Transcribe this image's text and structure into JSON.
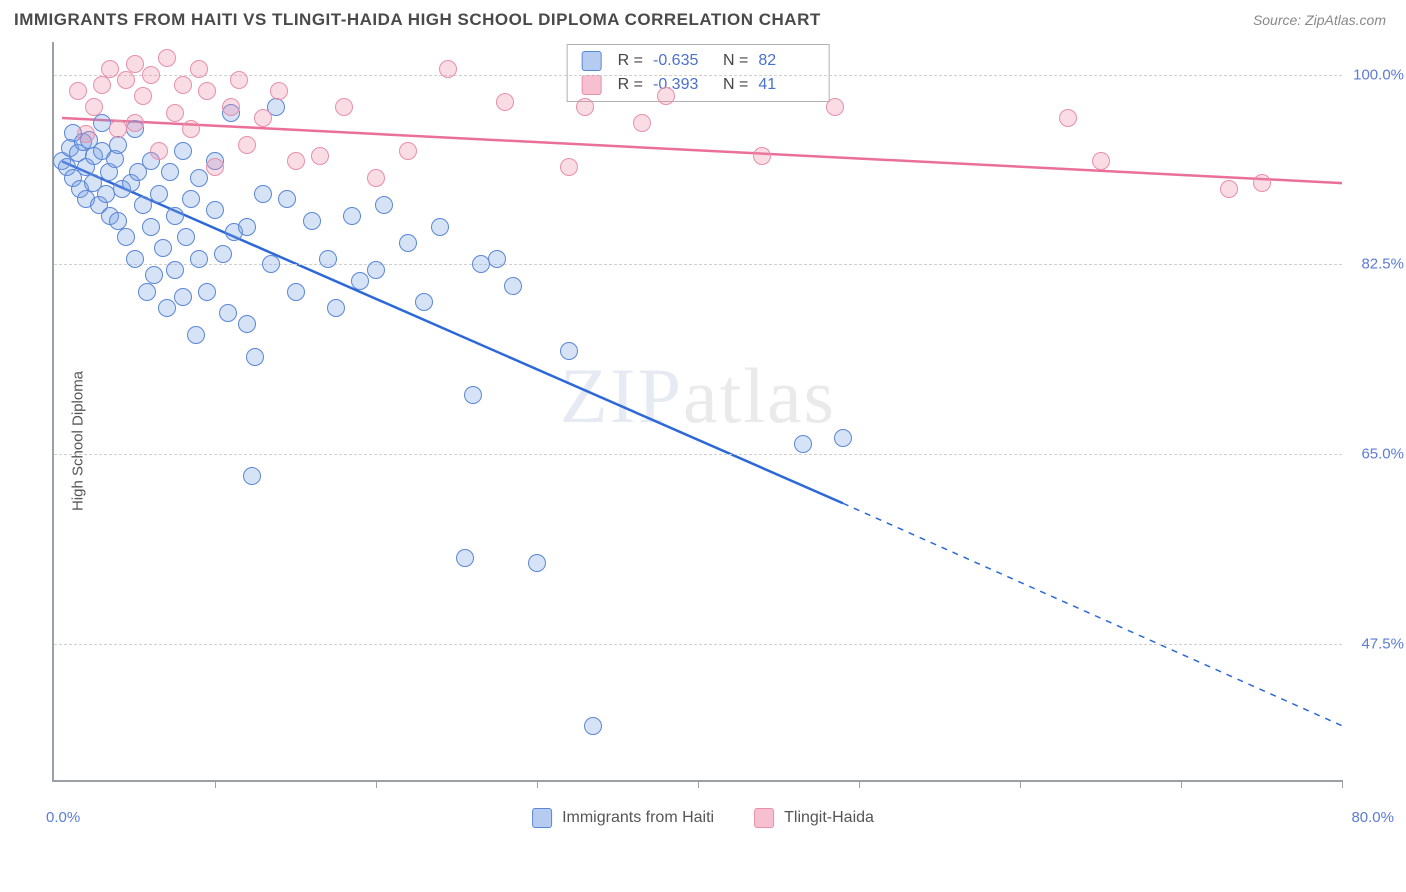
{
  "header": {
    "title": "IMMIGRANTS FROM HAITI VS TLINGIT-HAIDA HIGH SCHOOL DIPLOMA CORRELATION CHART",
    "source": "Source: ZipAtlas.com"
  },
  "chart": {
    "type": "scatter",
    "ylabel": "High School Diploma",
    "watermark": "ZIPatlas",
    "xlim": [
      0,
      80
    ],
    "ylim": [
      35,
      103
    ],
    "xtick_positions": [
      0,
      10,
      20,
      30,
      40,
      50,
      60,
      70,
      80
    ],
    "xlim_labels": {
      "left": "0.0%",
      "right": "80.0%"
    },
    "ytick_labels": [
      "47.5%",
      "65.0%",
      "82.5%",
      "100.0%"
    ],
    "ytick_values": [
      47.5,
      65.0,
      82.5,
      100.0
    ],
    "grid_color": "#d0d0d0",
    "axis_color": "#9aa0a6",
    "marker_size": 18,
    "series": [
      {
        "name": "Immigrants from Haiti",
        "color_fill": "rgba(120,160,225,0.30)",
        "color_border": "#5b87d6",
        "line_color": "#2d68d8",
        "line_width": 2.5,
        "R": "-0.635",
        "N": "82",
        "trend": {
          "x1": 0.5,
          "y1": 92.0,
          "x2": 49,
          "y2": 60.5,
          "dash_x2": 80,
          "dash_y2": 40
        },
        "points": [
          [
            0.5,
            92
          ],
          [
            0.8,
            91.5
          ],
          [
            1.0,
            93.2
          ],
          [
            1.2,
            90.5
          ],
          [
            1.2,
            94.6
          ],
          [
            1.5,
            92.8
          ],
          [
            1.6,
            89.5
          ],
          [
            1.8,
            93.8
          ],
          [
            2.0,
            91.5
          ],
          [
            2.0,
            88.5
          ],
          [
            2.2,
            94.0
          ],
          [
            2.4,
            90.0
          ],
          [
            2.5,
            92.5
          ],
          [
            2.8,
            88.0
          ],
          [
            3.0,
            93.0
          ],
          [
            3.0,
            95.5
          ],
          [
            3.2,
            89.0
          ],
          [
            3.4,
            91.0
          ],
          [
            3.5,
            87.0
          ],
          [
            3.8,
            92.2
          ],
          [
            4.0,
            86.5
          ],
          [
            4.0,
            93.5
          ],
          [
            4.2,
            89.5
          ],
          [
            4.5,
            85.0
          ],
          [
            4.8,
            90.0
          ],
          [
            5.0,
            95.0
          ],
          [
            5.0,
            83.0
          ],
          [
            5.2,
            91.0
          ],
          [
            5.5,
            88.0
          ],
          [
            5.8,
            80.0
          ],
          [
            6.0,
            92.0
          ],
          [
            6.0,
            86.0
          ],
          [
            6.2,
            81.5
          ],
          [
            6.5,
            89.0
          ],
          [
            6.8,
            84.0
          ],
          [
            7.0,
            78.5
          ],
          [
            7.2,
            91.0
          ],
          [
            7.5,
            87.0
          ],
          [
            7.5,
            82.0
          ],
          [
            8.0,
            79.5
          ],
          [
            8.0,
            93.0
          ],
          [
            8.2,
            85.0
          ],
          [
            8.5,
            88.5
          ],
          [
            8.8,
            76.0
          ],
          [
            9.0,
            83.0
          ],
          [
            9.0,
            90.5
          ],
          [
            9.5,
            80.0
          ],
          [
            10.0,
            87.5
          ],
          [
            10.0,
            92.0
          ],
          [
            10.5,
            83.5
          ],
          [
            10.8,
            78.0
          ],
          [
            11.0,
            96.5
          ],
          [
            11.2,
            85.5
          ],
          [
            12.0,
            86.0
          ],
          [
            12.0,
            77.0
          ],
          [
            12.5,
            74.0
          ],
          [
            13.0,
            89.0
          ],
          [
            13.5,
            82.5
          ],
          [
            13.8,
            97.0
          ],
          [
            14.5,
            88.5
          ],
          [
            15.0,
            80.0
          ],
          [
            12.3,
            63.0
          ],
          [
            16.0,
            86.5
          ],
          [
            17.0,
            83.0
          ],
          [
            17.5,
            78.5
          ],
          [
            18.5,
            87.0
          ],
          [
            19.0,
            81.0
          ],
          [
            20.0,
            82.0
          ],
          [
            20.5,
            88.0
          ],
          [
            22.0,
            84.5
          ],
          [
            23.0,
            79.0
          ],
          [
            24.0,
            86.0
          ],
          [
            26.0,
            70.5
          ],
          [
            26.5,
            82.5
          ],
          [
            27.5,
            83.0
          ],
          [
            28.5,
            80.5
          ],
          [
            25.5,
            55.5
          ],
          [
            30.0,
            55.0
          ],
          [
            32.0,
            74.5
          ],
          [
            33.5,
            40.0
          ],
          [
            46.5,
            66.0
          ],
          [
            49.0,
            66.5
          ]
        ]
      },
      {
        "name": "Tlingit-Haida",
        "color_fill": "rgba(240,140,170,0.30)",
        "color_border": "#e88fab",
        "line_color": "#ea6f99",
        "line_width": 2.5,
        "R": "-0.393",
        "N": "41",
        "trend": {
          "x1": 0.5,
          "y1": 96.0,
          "x2": 80,
          "y2": 90.0
        },
        "points": [
          [
            1.5,
            98.5
          ],
          [
            2.0,
            94.5
          ],
          [
            2.5,
            97.0
          ],
          [
            3.0,
            99.0
          ],
          [
            3.5,
            100.5
          ],
          [
            4.0,
            95.0
          ],
          [
            4.5,
            99.5
          ],
          [
            5.0,
            101.0
          ],
          [
            5.0,
            95.5
          ],
          [
            5.5,
            98.0
          ],
          [
            6.0,
            100.0
          ],
          [
            6.5,
            93.0
          ],
          [
            7.0,
            101.5
          ],
          [
            7.5,
            96.5
          ],
          [
            8.0,
            99.0
          ],
          [
            8.5,
            95.0
          ],
          [
            9.0,
            100.5
          ],
          [
            9.5,
            98.5
          ],
          [
            10.0,
            91.5
          ],
          [
            11.0,
            97.0
          ],
          [
            11.5,
            99.5
          ],
          [
            12.0,
            93.5
          ],
          [
            13.0,
            96.0
          ],
          [
            14.0,
            98.5
          ],
          [
            15.0,
            92.0
          ],
          [
            16.5,
            92.5
          ],
          [
            18.0,
            97.0
          ],
          [
            20.0,
            90.5
          ],
          [
            22.0,
            93.0
          ],
          [
            24.5,
            100.5
          ],
          [
            28.0,
            97.5
          ],
          [
            32.0,
            91.5
          ],
          [
            33.0,
            97.0
          ],
          [
            36.5,
            95.5
          ],
          [
            38.0,
            98.0
          ],
          [
            44.0,
            92.5
          ],
          [
            48.5,
            97.0
          ],
          [
            63.0,
            96.0
          ],
          [
            65.0,
            92.0
          ],
          [
            73.0,
            89.5
          ],
          [
            75.0,
            90.0
          ]
        ]
      }
    ],
    "stats_box": {
      "rows": [
        {
          "swatch": "blue",
          "R_label": "R =",
          "R": "-0.635",
          "N_label": "N =",
          "N": "82"
        },
        {
          "swatch": "pink",
          "R_label": "R =",
          "R": "-0.393",
          "N_label": "N =",
          "N": "41"
        }
      ]
    },
    "legend": [
      {
        "swatch": "blue",
        "label": "Immigrants from Haiti"
      },
      {
        "swatch": "pink",
        "label": "Tlingit-Haida"
      }
    ]
  }
}
